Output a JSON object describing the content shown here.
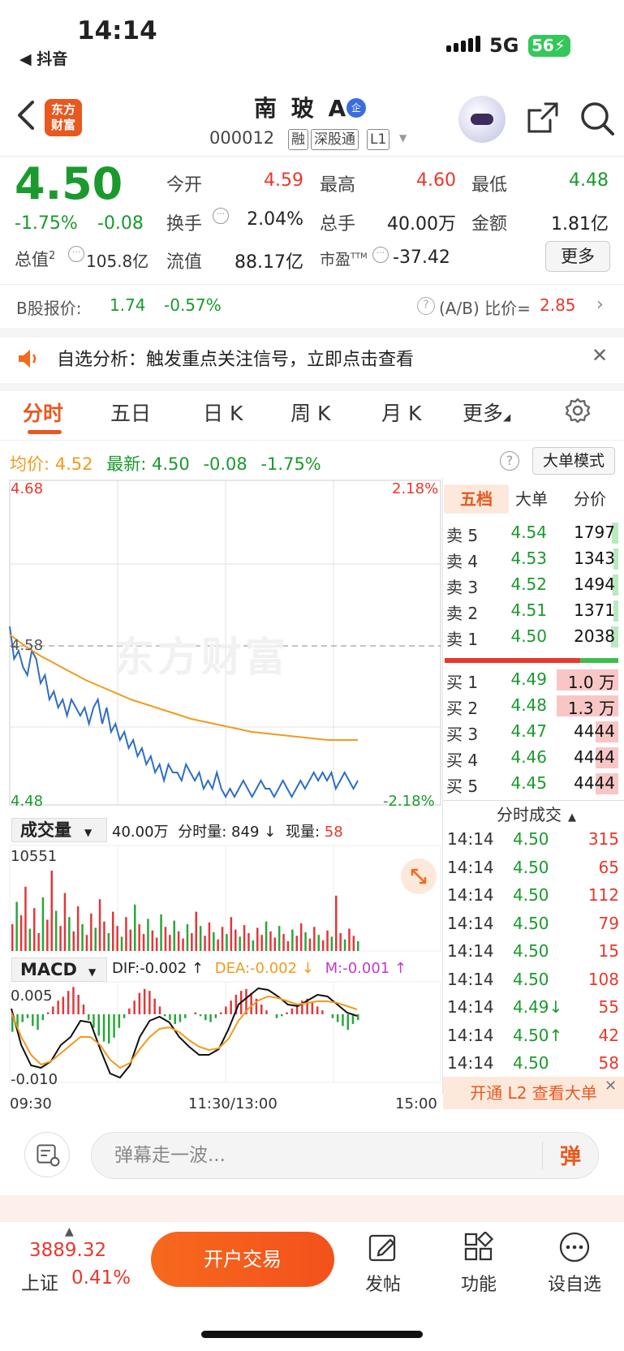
{
  "status": {
    "time": "14:14",
    "back_app": "◀ 抖音",
    "network": "5G",
    "battery": "56"
  },
  "nav": {
    "logo_line1": "东方",
    "logo_line2": "财富",
    "stock_name": "南 玻 A",
    "qi_badge": "企",
    "code": "000012",
    "tags": [
      "融",
      "深股通",
      "L1"
    ]
  },
  "quote": {
    "price": "4.50",
    "pct": "-1.75%",
    "change": "-0.08",
    "open_label": "今开",
    "open": "4.59",
    "high_label": "最高",
    "high": "4.60",
    "low_label": "最低",
    "low": "4.48",
    "turnover_label": "换手",
    "turnover": "2.04%",
    "volume_label": "总手",
    "volume": "40.00万",
    "amount_label": "金额",
    "amount": "1.81亿",
    "mktcap_label": "总值",
    "mktcap_sup": "2",
    "mktcap": "105.8亿",
    "float_label": "流值",
    "float": "88.17亿",
    "pe_label": "市盈",
    "pe_sup": "TTM",
    "pe": "-37.42",
    "more": "更多"
  },
  "bshare": {
    "label": "B股报价:",
    "price": "1.74",
    "pct": "-0.57%",
    "ab_label": "(A/B) 比价=",
    "ab_value": "2.85"
  },
  "notice": {
    "text": "自选分析：触发重点关注信号，立即点击查看"
  },
  "tabs": [
    "分时",
    "五日",
    "日 K",
    "周 K",
    "月 K",
    "更多"
  ],
  "info_row": {
    "avg_label": "均价:",
    "avg": "4.52",
    "last_label": "最新:",
    "last": "4.50",
    "chg": "-0.08",
    "pct": "-1.75%",
    "mode": "大单模式"
  },
  "chart_data": [
    {
      "type": "line",
      "title": "分时",
      "y_labels": {
        "top": "4.68",
        "mid": "4.58",
        "bottom": "4.48",
        "top_pct": "2.18%",
        "bottom_pct": "-2.18%"
      },
      "x_labels": [
        "09:30",
        "11:30/13:00",
        "15:00"
      ],
      "ylim": [
        4.48,
        4.68
      ],
      "series": [
        {
          "color": "#2f6ec2",
          "values": [
            4.59,
            4.57,
            4.575,
            4.565,
            4.56,
            4.575,
            4.57,
            4.555,
            4.56,
            4.545,
            4.55,
            4.54,
            4.545,
            4.535,
            4.545,
            4.54,
            4.535,
            4.54,
            4.53,
            4.54,
            4.545,
            4.53,
            4.54,
            4.525,
            4.53,
            4.52,
            4.525,
            4.515,
            4.52,
            4.51,
            4.515,
            4.505,
            4.51,
            4.5,
            4.505,
            4.495,
            4.505,
            4.5,
            4.5,
            4.495,
            4.505,
            4.5,
            4.495,
            4.5,
            4.49,
            4.495,
            4.49,
            4.5,
            4.49,
            4.485,
            4.49,
            4.485,
            4.49,
            4.495,
            4.49,
            4.485,
            4.49,
            4.495,
            4.49,
            4.49,
            4.485,
            4.49,
            4.495,
            4.49,
            4.485,
            4.49,
            4.495,
            4.49,
            4.495,
            4.5,
            4.495,
            4.5,
            4.495,
            4.5,
            4.49,
            4.495,
            4.5,
            4.495,
            4.49,
            4.495
          ]
        },
        {
          "color": "#f29a1d",
          "values": [
            4.585,
            4.578,
            4.572,
            4.567,
            4.562,
            4.557,
            4.553,
            4.549,
            4.545,
            4.542,
            4.539,
            4.536,
            4.533,
            4.531,
            4.529,
            4.527,
            4.525,
            4.524,
            4.523,
            4.522,
            4.521,
            4.52,
            4.52,
            4.52
          ]
        }
      ]
    },
    {
      "type": "bar",
      "title": "成交量",
      "summary": "40.00万",
      "fs_label": "分时量: 849 ↓",
      "cur_label": "现量:",
      "cur": "58",
      "ymax_label": "10551"
    },
    {
      "type": "bar",
      "title": "MACD",
      "dif": "DIF:-0.002 ↑",
      "dea": "DEA:-0.002 ↓",
      "m": "M:-0.001 ↑",
      "ymax_label": "0.005",
      "ymin_label": "-0.010"
    }
  ],
  "orderbook": {
    "tabs": [
      "五档",
      "大单",
      "分价"
    ],
    "asks": [
      {
        "label": "卖 5",
        "price": "4.54",
        "vol": "1797"
      },
      {
        "label": "卖 4",
        "price": "4.53",
        "vol": "1343"
      },
      {
        "label": "卖 3",
        "price": "4.52",
        "vol": "1494"
      },
      {
        "label": "卖 2",
        "price": "4.51",
        "vol": "1371"
      },
      {
        "label": "卖 1",
        "price": "4.50",
        "vol": "2038"
      }
    ],
    "bids": [
      {
        "label": "买 1",
        "price": "4.49",
        "vol": "1.0 万"
      },
      {
        "label": "买 2",
        "price": "4.48",
        "vol": "1.3 万"
      },
      {
        "label": "买 3",
        "price": "4.47",
        "vol": "4444"
      },
      {
        "label": "买 4",
        "price": "4.46",
        "vol": "4444"
      },
      {
        "label": "买 5",
        "price": "4.45",
        "vol": "4444"
      }
    ]
  },
  "ticks": {
    "header": "分时成交",
    "rows": [
      {
        "t": "14:14",
        "p": "4.50",
        "v": "315"
      },
      {
        "t": "14:14",
        "p": "4.50",
        "v": "65"
      },
      {
        "t": "14:14",
        "p": "4.50",
        "v": "112"
      },
      {
        "t": "14:14",
        "p": "4.50",
        "v": "79"
      },
      {
        "t": "14:14",
        "p": "4.50",
        "v": "15"
      },
      {
        "t": "14:14",
        "p": "4.50",
        "v": "108"
      },
      {
        "t": "14:14",
        "p": "4.49↓",
        "v": "55"
      },
      {
        "t": "14:14",
        "p": "4.50↑",
        "v": "42"
      },
      {
        "t": "14:14",
        "p": "4.50",
        "v": "58"
      }
    ],
    "l2_banner": "开通 L2 查看大单"
  },
  "danmu": {
    "placeholder": "弹幕走一波...",
    "button": "弹"
  },
  "bottom": {
    "index_value": "3889.32",
    "index_name": "上证",
    "index_pct": "0.41%",
    "trade": "开户交易",
    "post": "发帖",
    "func": "功能",
    "watch": "设自选"
  },
  "watermark": "东方财富"
}
